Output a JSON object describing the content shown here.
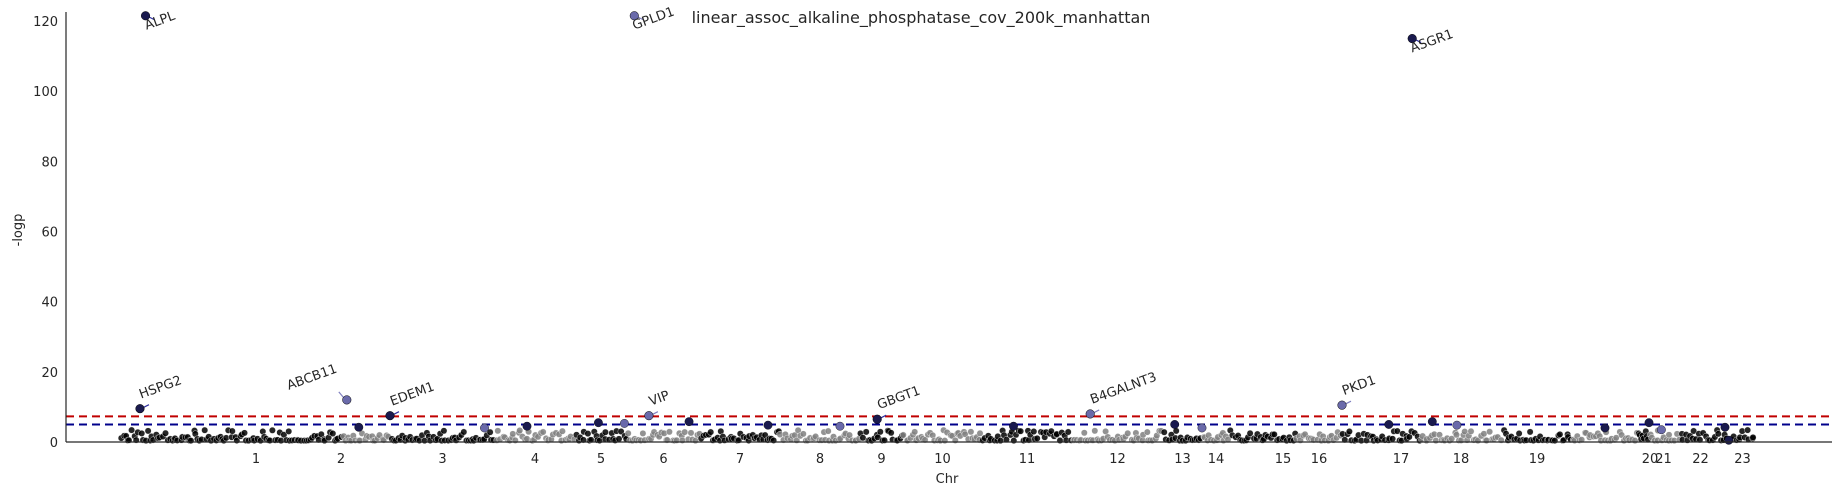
{
  "chart_data": {
    "type": "scatter",
    "title": "linear_assoc_alkaline_phosphatase_cov_200k_manhattan",
    "xlabel": "Chr",
    "ylabel": "-logp",
    "ylim": [
      0,
      122
    ],
    "yticks": [
      0,
      20,
      40,
      60,
      80,
      100,
      120
    ],
    "grid": false,
    "legend": "none",
    "chromosomes": [
      {
        "label": "1",
        "start": 0.0,
        "end": 1.0
      },
      {
        "label": "2",
        "start": 1.0,
        "end": 2.0
      },
      {
        "label": "3",
        "start": 2.0,
        "end": 3.0
      },
      {
        "label": "4",
        "start": 3.0,
        "end": 4.0
      },
      {
        "label": "5",
        "start": 4.0,
        "end": 5.0
      },
      {
        "label": "6",
        "start": 5.0,
        "end": 6.0
      },
      {
        "label": "7",
        "start": 6.0,
        "end": 7.0
      },
      {
        "label": "8",
        "start": 7.0,
        "end": 8.0
      },
      {
        "label": "9",
        "start": 8.0,
        "end": 9.0
      },
      {
        "label": "10",
        "start": 9.0,
        "end": 10.0
      },
      {
        "label": "11",
        "start": 10.0,
        "end": 11.0
      },
      {
        "label": "12",
        "start": 11.0,
        "end": 12.0
      },
      {
        "label": "13",
        "start": 12.0,
        "end": 13.0
      },
      {
        "label": "14",
        "start": 13.0,
        "end": 14.0
      },
      {
        "label": "15",
        "start": 14.0,
        "end": 15.0
      },
      {
        "label": "16",
        "start": 15.0,
        "end": 16.0
      },
      {
        "label": "17",
        "start": 16.0,
        "end": 17.0
      },
      {
        "label": "18",
        "start": 17.0,
        "end": 18.0
      },
      {
        "label": "19",
        "start": 18.0,
        "end": 19.0
      },
      {
        "label": "20",
        "start": 19.0,
        "end": 20.0
      },
      {
        "label": "21",
        "start": 20.0,
        "end": 21.0
      },
      {
        "label": "22",
        "start": 21.0,
        "end": 22.0
      },
      {
        "label": "23",
        "start": 22.0,
        "end": 23.0
      }
    ],
    "thresholds": [
      {
        "value": 7.3,
        "color": "#c00000"
      },
      {
        "value": 5.0,
        "color": "#00008b"
      }
    ],
    "colors": {
      "odd_chromosome": "#000000",
      "even_chromosome": "#808080",
      "hit_fill": "#1a1a4e",
      "hit_purple": "#6a6aaa",
      "arrow_dark": "#3030a0",
      "arrow_light": "#8080c0"
    },
    "annotated_hits": [
      {
        "gene": "ALPL",
        "x": 0.115,
        "y": 121.5
      },
      {
        "gene": "HSPG2",
        "x": 0.09,
        "y": 9.5
      },
      {
        "gene": "ABCB11",
        "x": 1.1,
        "y": 12.0
      },
      {
        "gene": "EDEM1",
        "x": 2.0,
        "y": 7.5
      },
      {
        "gene": "GPLD1",
        "x": 5.1,
        "y": 121.5
      },
      {
        "gene": "VIP",
        "x": 5.3,
        "y": 7.5
      },
      {
        "gene": "GBGT1",
        "x": 8.4,
        "y": 6.5
      },
      {
        "gene": "B4GALNT3",
        "x": 11.2,
        "y": 8.0
      },
      {
        "gene": "PKD1",
        "x": 16.0,
        "y": 10.5
      },
      {
        "gene": "ASGR1",
        "x": 16.9,
        "y": 115.0
      }
    ],
    "other_peaks": [
      {
        "x": 1.35,
        "y": 4.2
      },
      {
        "x": 2.9,
        "y": 4.0
      },
      {
        "x": 3.4,
        "y": 4.5
      },
      {
        "x": 4.45,
        "y": 5.5
      },
      {
        "x": 4.95,
        "y": 5.3
      },
      {
        "x": 5.85,
        "y": 5.8
      },
      {
        "x": 6.85,
        "y": 4.8
      },
      {
        "x": 7.75,
        "y": 4.5
      },
      {
        "x": 10.35,
        "y": 4.5
      },
      {
        "x": 12.3,
        "y": 5.0
      },
      {
        "x": 13.0,
        "y": 4.0
      },
      {
        "x": 16.6,
        "y": 5.0
      },
      {
        "x": 17.15,
        "y": 5.8
      },
      {
        "x": 17.45,
        "y": 4.8
      },
      {
        "x": 19.5,
        "y": 4.0
      },
      {
        "x": 21.0,
        "y": 5.5
      },
      {
        "x": 21.4,
        "y": 3.5
      },
      {
        "x": 22.6,
        "y": 4.2
      },
      {
        "x": 22.65,
        "y": 0.5
      }
    ]
  }
}
